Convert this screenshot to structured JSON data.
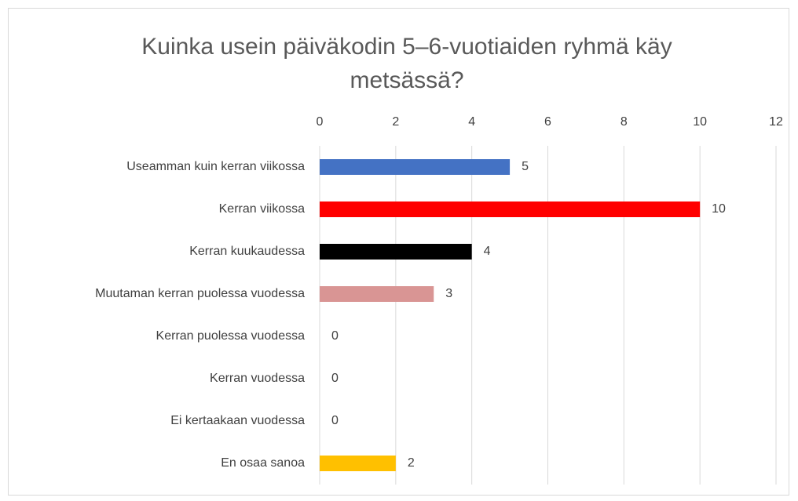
{
  "chart_data": {
    "type": "bar",
    "orientation": "horizontal",
    "title": "Kuinka usein päiväkodin 5–6-vuotiaiden ryhmä käy metsässä?",
    "categories": [
      "Useamman kuin kerran viikossa",
      "Kerran viikossa",
      "Kerran kuukaudessa",
      "Muutaman kerran puolessa vuodessa",
      "Kerran puolessa vuodessa",
      "Kerran vuodessa",
      "Ei kertaakaan vuodessa",
      "En osaa sanoa"
    ],
    "values": [
      5,
      10,
      4,
      3,
      0,
      0,
      0,
      2
    ],
    "colors": [
      "#4472c4",
      "#ff0000",
      "#000000",
      "#d99594",
      null,
      null,
      null,
      "#ffc000"
    ],
    "xlim": [
      0,
      12
    ],
    "xticks": [
      0,
      2,
      4,
      6,
      8,
      10,
      12
    ],
    "grid": true
  }
}
